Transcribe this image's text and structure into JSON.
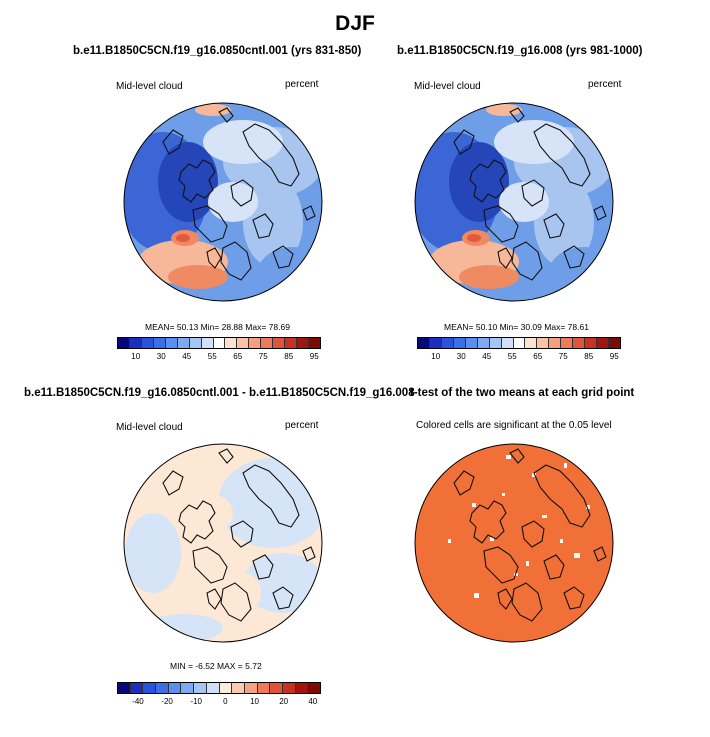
{
  "main_title": "DJF",
  "chart_data": [
    {
      "type": "heatmap",
      "projection": "polar stereographic (north)",
      "title": "b.e11.B1850C5CN.f19_g16.0850cntl.001 (yrs 831-850)",
      "left_label": "Mid-level cloud",
      "right_label": "percent",
      "stats": {
        "mean_label": "MEAN=",
        "mean": "50.13",
        "min_label": "Min=",
        "min": "28.88",
        "max_label": "Max=",
        "max": "78.69"
      },
      "colorbar": {
        "levels": [
          "10",
          "30",
          "45",
          "55",
          "65",
          "75",
          "85",
          "95"
        ],
        "colors": [
          "#08087a",
          "#1a2fc0",
          "#2a52de",
          "#3a6fe6",
          "#5b8ef0",
          "#7eaaf2",
          "#a4c6f5",
          "#cfe0f8",
          "#ffffff",
          "#fde2d0",
          "#fbc2a4",
          "#f69f7e",
          "#ef7a5a",
          "#e2543a",
          "#c8301f",
          "#a3140f",
          "#7c0a05"
        ]
      },
      "field_colors": {
        "base": "#6f9ee8",
        "dark": "#3c66d6",
        "deep": "#2446b8",
        "light": "#a8c5f0",
        "pale": "#d7e4f7",
        "warm": "#f7b89a",
        "hot": "#ef8a62"
      }
    },
    {
      "type": "heatmap",
      "projection": "polar stereographic (north)",
      "title": "b.e11.B1850C5CN.f19_g16.008 (yrs 981-1000)",
      "left_label": "Mid-level cloud",
      "right_label": "percent",
      "stats": {
        "mean_label": "MEAN=",
        "mean": "50.10",
        "min_label": "Min=",
        "min": "30.09",
        "max_label": "Max=",
        "max": "78.61"
      },
      "colorbar": {
        "levels": [
          "10",
          "30",
          "45",
          "55",
          "65",
          "75",
          "85",
          "95"
        ],
        "colors": [
          "#08087a",
          "#1a2fc0",
          "#2a52de",
          "#3a6fe6",
          "#5b8ef0",
          "#7eaaf2",
          "#a4c6f5",
          "#cfe0f8",
          "#ffffff",
          "#fde2d0",
          "#fbc2a4",
          "#f69f7e",
          "#ef7a5a",
          "#e2543a",
          "#c8301f",
          "#a3140f",
          "#7c0a05"
        ]
      },
      "field_colors": {
        "base": "#6f9ee8",
        "dark": "#3c66d6",
        "deep": "#2446b8",
        "light": "#a8c5f0",
        "pale": "#d7e4f7",
        "warm": "#f7b89a",
        "hot": "#ef8a62"
      }
    },
    {
      "type": "heatmap",
      "projection": "polar stereographic (north)",
      "title": "b.e11.B1850C5CN.f19_g16.0850cntl.001 - b.e11.B1850C5CN.f19_g16.008",
      "left_label": "Mid-level cloud",
      "right_label": "percent",
      "stats": {
        "min_label": "MIN =",
        "min": "-6.52",
        "max_label": "MAX =",
        "max": "5.72"
      },
      "colorbar": {
        "levels": [
          "-40",
          "-20",
          "-10",
          "0",
          "10",
          "20",
          "40"
        ],
        "colors": [
          "#08087a",
          "#1a2fc0",
          "#2a52de",
          "#3a6fe6",
          "#5b8ef0",
          "#7eaaf2",
          "#a4c6f5",
          "#cfe0f8",
          "#fdebdc",
          "#fbc9ad",
          "#f7a382",
          "#ef7a5a",
          "#e2543a",
          "#c8301f",
          "#a3140f",
          "#7c0a05"
        ]
      },
      "field_colors": {
        "base": "#fde8d6",
        "blue": "#d5e4f6"
      }
    },
    {
      "type": "heatmap",
      "projection": "polar stereographic (north)",
      "title": "t-test of the two means at each grid point",
      "left_label": "Colored cells are significant at the 0.05 level",
      "field_colors": {
        "base": "#f07038",
        "gap": "#ffffff"
      }
    }
  ]
}
